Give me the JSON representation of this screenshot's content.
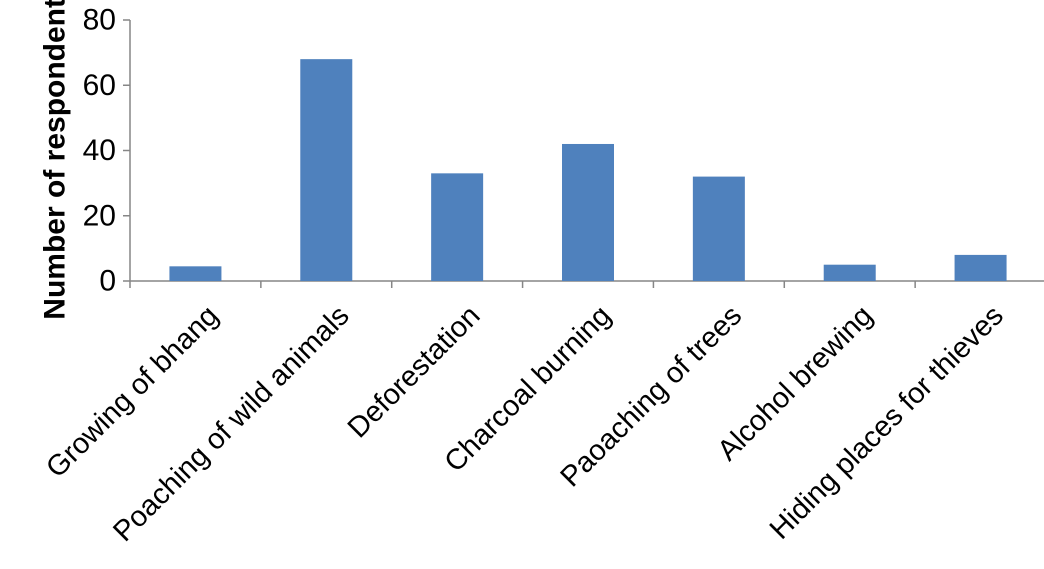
{
  "chart_data": {
    "type": "bar",
    "title": "",
    "xlabel": "",
    "ylabel": "Number of respondents",
    "ylim": [
      0,
      80
    ],
    "yticks": [
      0,
      20,
      40,
      60,
      80
    ],
    "grid": false,
    "categories": [
      "Growing of bhang",
      "Poaching of wild animals",
      "Deforestation",
      "Charcoal burning",
      "Paoaching of trees",
      "Alcohol brewing",
      "Hiding places for thieves"
    ],
    "values": [
      4.5,
      68,
      33,
      42,
      32,
      5,
      8
    ],
    "colors": {
      "bar": "#4F81BD",
      "axis": "#868686"
    }
  }
}
